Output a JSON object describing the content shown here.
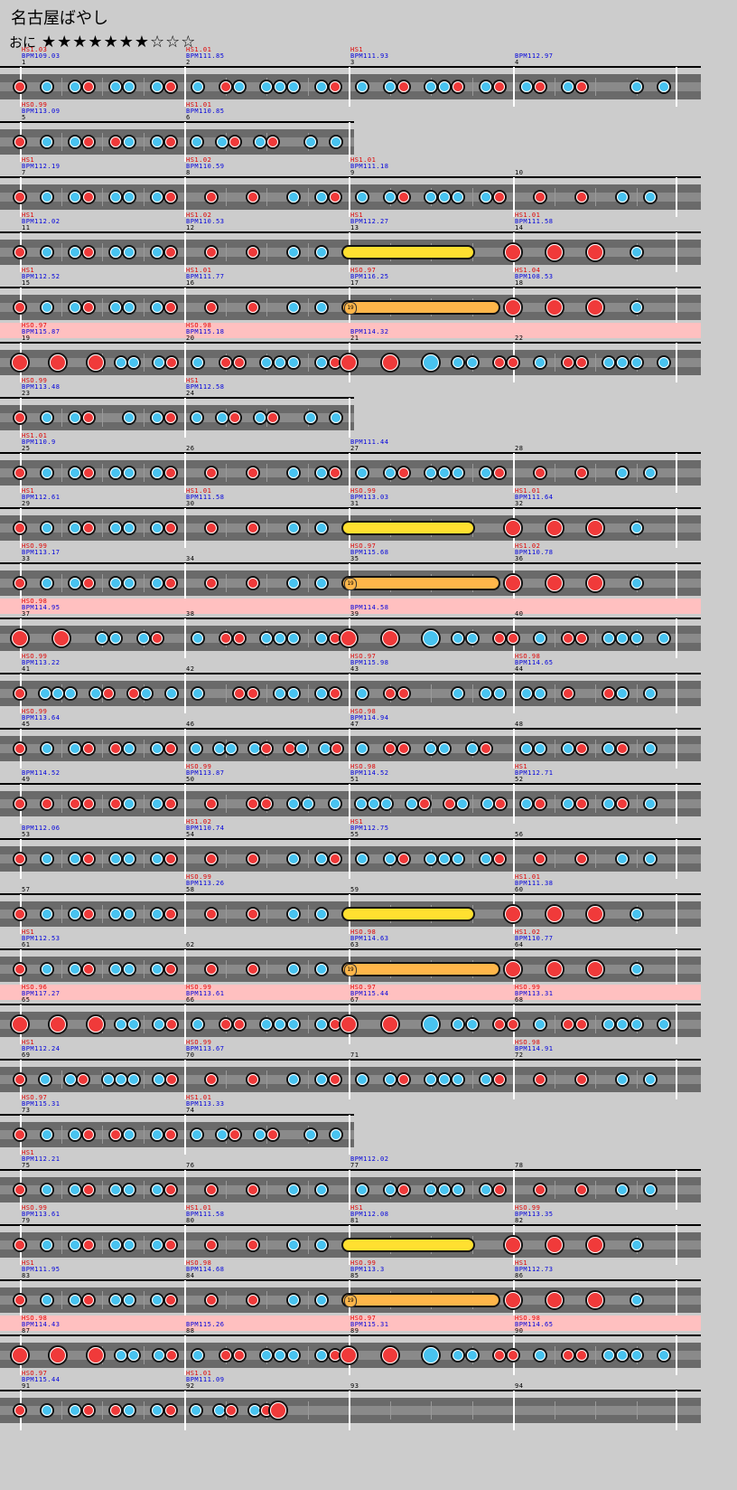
{
  "song": {
    "title": "名古屋ばやし",
    "difficulty_label": "おに",
    "stars": "★★★★★★★☆☆☆"
  },
  "colors": {
    "don": "#f03a3a",
    "ka": "#48c3f0",
    "lane": "#6a6a6a",
    "gogo": "#ffc0c0",
    "roll": "#ffe030",
    "balloon": "#ffb64a"
  },
  "rows": [
    {
      "gogo": false,
      "measures": [
        {
          "hs": "HS1.03",
          "bpm": "BPM109.03",
          "num": "1",
          "notes": "d.k.kd.kk.kd"
        },
        {
          "hs": "HS1.01",
          "bpm": "BPM111.85",
          "num": "2",
          "notes": ".k.dk.kkk.kd"
        },
        {
          "hs": "HS1",
          "bpm": "BPM111.93",
          "num": "3",
          "notes": ".k.kd.kkd.kd"
        },
        {
          "hs": "",
          "bpm": "BPM112.97",
          "num": "4",
          "notes": ".kd.kd...k.k"
        }
      ]
    },
    {
      "gogo": false,
      "measures": [
        {
          "hs": "HSO.99",
          "bpm": "BPM113.09",
          "num": "5",
          "notes": "d.k.kd.dk.kd"
        },
        {
          "hs": "HS1.01",
          "bpm": "BPM110.85",
          "num": "6",
          "notes": ".k.kd.kd..k.k"
        }
      ]
    },
    {
      "gogo": false,
      "measures": [
        {
          "hs": "HS1",
          "bpm": "BPM112.19",
          "num": "7",
          "notes": "d.k.kd.kk.kd"
        },
        {
          "hs": "HS1.02",
          "bpm": "BPM110.59",
          "num": "8",
          "notes": "..d..d..k.kd"
        },
        {
          "hs": "HS1.01",
          "bpm": "BPM111.18",
          "num": "9",
          "notes": ".k.kd.kkk.kd"
        },
        {
          "hs": "",
          "bpm": "",
          "num": "10",
          "notes": "..d..d..k.k"
        }
      ]
    },
    {
      "gogo": false,
      "measures": [
        {
          "hs": "HS1",
          "bpm": "BPM112.02",
          "num": "11",
          "notes": "d.k.kd.kk.kd"
        },
        {
          "hs": "HS1.02",
          "bpm": "BPM110.53",
          "num": "12",
          "notes": "..d..d..k.k"
        },
        {
          "hs": "HS1",
          "bpm": "BPM112.27",
          "num": "13",
          "roll": "yellow",
          "notes": ""
        },
        {
          "hs": "HS1.01",
          "bpm": "BPM111.58",
          "num": "14",
          "notes": "D..D..D..k"
        }
      ]
    },
    {
      "gogo": false,
      "measures": [
        {
          "hs": "HS1",
          "bpm": "BPM112.52",
          "num": "15",
          "notes": "d.k.kd.kk.kd"
        },
        {
          "hs": "HS1.01",
          "bpm": "BPM111.77",
          "num": "16",
          "notes": "..d..d..k.k"
        },
        {
          "hs": "HSO.97",
          "bpm": "BPM116.25",
          "num": "17",
          "roll": "orange",
          "count": "19",
          "notes": ""
        },
        {
          "hs": "HS1.04",
          "bpm": "BPM108.53",
          "num": "18",
          "notes": "D..D..D..k"
        }
      ]
    },
    {
      "gogo": true,
      "measures": [
        {
          "hs": "HSO.97",
          "bpm": "BPM115.87",
          "num": "19",
          "notes": "D..D..D.kk.kd"
        },
        {
          "hs": "HSO.98",
          "bpm": "BPM115.18",
          "num": "20",
          "notes": ".k.dd.kkk.kd"
        },
        {
          "hs": "",
          "bpm": "BPM114.32",
          "num": "21",
          "notes": "D..D..K.kk.d"
        },
        {
          "hs": "",
          "bpm": "",
          "num": "22",
          "notes": "d.k.dd.kkk.k"
        }
      ]
    },
    {
      "gogo": false,
      "measures": [
        {
          "hs": "HSO.99",
          "bpm": "BPM113.48",
          "num": "23",
          "notes": "d.k.kd..k.kd"
        },
        {
          "hs": "HS1",
          "bpm": "BPM112.58",
          "num": "24",
          "notes": ".k.kd.kd..k.k"
        }
      ]
    },
    {
      "gogo": false,
      "measures": [
        {
          "hs": "HS1.01",
          "bpm": "BPM110.9",
          "num": "25",
          "notes": "d.k.kd.kk.kd"
        },
        {
          "hs": "",
          "bpm": "",
          "num": "26",
          "notes": "..d..d..k.kd"
        },
        {
          "hs": "",
          "bpm": "BPM111.44",
          "num": "27",
          "notes": ".k.kd.kkk.kd"
        },
        {
          "hs": "",
          "bpm": "",
          "num": "28",
          "notes": "..d..d..k.k"
        }
      ]
    },
    {
      "gogo": false,
      "measures": [
        {
          "hs": "HS1",
          "bpm": "BPM112.61",
          "num": "29",
          "notes": "d.k.kd.kk.kd"
        },
        {
          "hs": "HS1.01",
          "bpm": "BPM111.58",
          "num": "30",
          "notes": "..d..d..k.k"
        },
        {
          "hs": "HSO.99",
          "bpm": "BPM113.03",
          "num": "31",
          "roll": "yellow",
          "notes": ""
        },
        {
          "hs": "HS1.01",
          "bpm": "BPM111.64",
          "num": "32",
          "notes": "D..D..D..k"
        }
      ]
    },
    {
      "gogo": false,
      "measures": [
        {
          "hs": "HSO.99",
          "bpm": "BPM113.17",
          "num": "33",
          "notes": "d.k.kd.kk.kd"
        },
        {
          "hs": "",
          "bpm": "",
          "num": "34",
          "notes": "..d..d..k.k"
        },
        {
          "hs": "HSO.97",
          "bpm": "BPM115.68",
          "num": "35",
          "roll": "orange",
          "count": "19",
          "notes": ""
        },
        {
          "hs": "HS1.02",
          "bpm": "BPM110.78",
          "num": "36",
          "notes": "D..D..D..k"
        }
      ]
    },
    {
      "gogo": true,
      "measures": [
        {
          "hs": "HSO.98",
          "bpm": "BPM114.95",
          "num": "37",
          "notes": "D..D..kk.kd"
        },
        {
          "hs": "",
          "bpm": "",
          "num": "38",
          "notes": ".k.dd.kkk.kd"
        },
        {
          "hs": "",
          "bpm": "BPM114.58",
          "num": "39",
          "notes": "D..D..K.kk.d"
        },
        {
          "hs": "",
          "bpm": "",
          "num": "40",
          "notes": "d.k.dd.kkk.k"
        }
      ]
    },
    {
      "gogo": false,
      "measures": [
        {
          "hs": "HSO.99",
          "bpm": "BPM113.22",
          "num": "41",
          "notes": "d.kkk.kd.dk.k"
        },
        {
          "hs": "",
          "bpm": "",
          "num": "42",
          "notes": ".k..dd.kk.kd"
        },
        {
          "hs": "HSO.97",
          "bpm": "BPM115.98",
          "num": "43",
          "notes": ".k.dd...k.kk"
        },
        {
          "hs": "HSO.98",
          "bpm": "BPM114.65",
          "num": "44",
          "notes": ".kk.d..dk.k"
        }
      ]
    },
    {
      "gogo": false,
      "measures": [
        {
          "hs": "HSO.99",
          "bpm": "BPM113.64",
          "num": "45",
          "notes": "d.k.kd.dk.kd"
        },
        {
          "hs": "",
          "bpm": "",
          "num": "46",
          "notes": ".k.kk.kd.dk.kd"
        },
        {
          "hs": "HSO.98",
          "bpm": "BPM114.94",
          "num": "47",
          "notes": ".k.dd.kk.kd"
        },
        {
          "hs": "",
          "bpm": "",
          "num": "48",
          "notes": ".kk.kd.kd.k"
        }
      ]
    },
    {
      "gogo": false,
      "measures": [
        {
          "hs": "",
          "bpm": "BPM114.52",
          "num": "49",
          "notes": "d.d.dd.dk.kd"
        },
        {
          "hs": "HSO.99",
          "bpm": "BPM113.87",
          "num": "50",
          "notes": "..d..dd.kk.k"
        },
        {
          "hs": "HSO.98",
          "bpm": "BPM114.52",
          "num": "51",
          "notes": ".kkk.kd.dk.kd"
        },
        {
          "hs": "HS1",
          "bpm": "BPM112.71",
          "num": "52",
          "notes": ".kd.kd.kd.k"
        }
      ]
    },
    {
      "gogo": false,
      "measures": [
        {
          "hs": "",
          "bpm": "BPM112.06",
          "num": "53",
          "notes": "d.k.kd.kk.kd"
        },
        {
          "hs": "HS1.02",
          "bpm": "BPM110.74",
          "num": "54",
          "notes": "..d..d..k.kd"
        },
        {
          "hs": "HS1",
          "bpm": "BPM112.75",
          "num": "55",
          "notes": ".k.kd.kkk.kd"
        },
        {
          "hs": "",
          "bpm": "",
          "num": "56",
          "notes": "..d..d..k.k"
        }
      ]
    },
    {
      "gogo": false,
      "measures": [
        {
          "hs": "",
          "bpm": "",
          "num": "57",
          "notes": "d.k.kd.kk.kd"
        },
        {
          "hs": "HSO.99",
          "bpm": "BPM113.26",
          "num": "58",
          "notes": "..d..d..k.k"
        },
        {
          "hs": "",
          "bpm": "",
          "num": "59",
          "roll": "yellow",
          "notes": ""
        },
        {
          "hs": "HS1.01",
          "bpm": "BPM111.38",
          "num": "60",
          "notes": "D..D..D..k"
        }
      ]
    },
    {
      "gogo": false,
      "measures": [
        {
          "hs": "HS1",
          "bpm": "BPM112.53",
          "num": "61",
          "notes": "d.k.kd.kk.kd"
        },
        {
          "hs": "",
          "bpm": "",
          "num": "62",
          "notes": "..d..d..k.k"
        },
        {
          "hs": "HSO.98",
          "bpm": "BPM114.63",
          "num": "63",
          "roll": "orange",
          "count": "19",
          "notes": ""
        },
        {
          "hs": "HS1.02",
          "bpm": "BPM110.77",
          "num": "64",
          "notes": "D..D..D..k"
        }
      ]
    },
    {
      "gogo": true,
      "measures": [
        {
          "hs": "HSO.96",
          "bpm": "BPM117.27",
          "num": "65",
          "notes": "D..D..D.kk.kd"
        },
        {
          "hs": "HSO.99",
          "bpm": "BPM113.61",
          "num": "66",
          "notes": ".k.dd.kkk.kd"
        },
        {
          "hs": "HSO.97",
          "bpm": "BPM115.44",
          "num": "67",
          "notes": "D..D..K.kk.d"
        },
        {
          "hs": "HSO.99",
          "bpm": "BPM113.31",
          "num": "68",
          "notes": "d.k.dd.kkk.k"
        }
      ]
    },
    {
      "gogo": false,
      "measures": [
        {
          "hs": "HS1",
          "bpm": "BPM112.24",
          "num": "69",
          "notes": "d.k.kd.kkk.kd"
        },
        {
          "hs": "HSO.99",
          "bpm": "BPM113.67",
          "num": "70",
          "notes": "..d..d..k.kd"
        },
        {
          "hs": "",
          "bpm": "",
          "num": "71",
          "notes": ".k.kd.kkk.kd"
        },
        {
          "hs": "HSO.98",
          "bpm": "BPM114.91",
          "num": "72",
          "notes": "..d..d..k.k"
        }
      ]
    },
    {
      "gogo": false,
      "measures": [
        {
          "hs": "HSO.97",
          "bpm": "BPM115.31",
          "num": "73",
          "notes": "d.k.kd.dk.kd"
        },
        {
          "hs": "HS1.01",
          "bpm": "BPM113.33",
          "num": "74",
          "notes": ".k.kd.kd..k.k"
        }
      ]
    },
    {
      "gogo": false,
      "measures": [
        {
          "hs": "HS1",
          "bpm": "BPM112.21",
          "num": "75",
          "notes": "d.k.kd.kk.kd"
        },
        {
          "hs": "",
          "bpm": "",
          "num": "76",
          "notes": "..d..d..k.k"
        },
        {
          "hs": "",
          "bpm": "BPM112.02",
          "num": "77",
          "notes": ".k.kd.kkk.kd"
        },
        {
          "hs": "",
          "bpm": "",
          "num": "78",
          "notes": "..d..d..k.k"
        }
      ]
    },
    {
      "gogo": false,
      "measures": [
        {
          "hs": "HSO.99",
          "bpm": "BPM113.61",
          "num": "79",
          "notes": "d.k.kd.kk.kd"
        },
        {
          "hs": "HS1.01",
          "bpm": "BPM111.58",
          "num": "80",
          "notes": "..d..d..k.k"
        },
        {
          "hs": "HS1",
          "bpm": "BPM112.08",
          "num": "81",
          "roll": "yellow",
          "notes": ""
        },
        {
          "hs": "HSO.99",
          "bpm": "BPM113.35",
          "num": "82",
          "notes": "D..D..D..k"
        }
      ]
    },
    {
      "gogo": false,
      "measures": [
        {
          "hs": "HS1",
          "bpm": "BPM111.95",
          "num": "83",
          "notes": "d.k.kd.kk.kd"
        },
        {
          "hs": "HSO.98",
          "bpm": "BPM114.68",
          "num": "84",
          "notes": "..d..d..k.k"
        },
        {
          "hs": "HSO.99",
          "bpm": "BPM113.3",
          "num": "85",
          "roll": "orange",
          "count": "19",
          "notes": ""
        },
        {
          "hs": "HS1",
          "bpm": "BPM112.73",
          "num": "86",
          "notes": "D..D..D..k"
        }
      ]
    },
    {
      "gogo": true,
      "measures": [
        {
          "hs": "HSO.98",
          "bpm": "BPM114.43",
          "num": "87",
          "notes": "D..D..D.kk.kd"
        },
        {
          "hs": "",
          "bpm": "BPM115.26",
          "num": "88",
          "notes": ".k.dd.kkk.kd"
        },
        {
          "hs": "HSO.97",
          "bpm": "BPM115.31",
          "num": "89",
          "notes": "D..D..K.kk.d"
        },
        {
          "hs": "HSO.98",
          "bpm": "BPM114.65",
          "num": "90",
          "notes": "d.k.dd.kkk.k"
        }
      ]
    },
    {
      "gogo": false,
      "measures": [
        {
          "hs": "HSO.97",
          "bpm": "BPM115.44",
          "num": "91",
          "notes": "d.k.kd.dk.kd"
        },
        {
          "hs": "HS1.01",
          "bpm": "BPM111.09",
          "num": "92",
          "notes": ".k.kd.kdD....."
        },
        {
          "hs": "",
          "bpm": "",
          "num": "93",
          "notes": ""
        },
        {
          "hs": "",
          "bpm": "",
          "num": "94",
          "notes": ""
        }
      ]
    }
  ]
}
